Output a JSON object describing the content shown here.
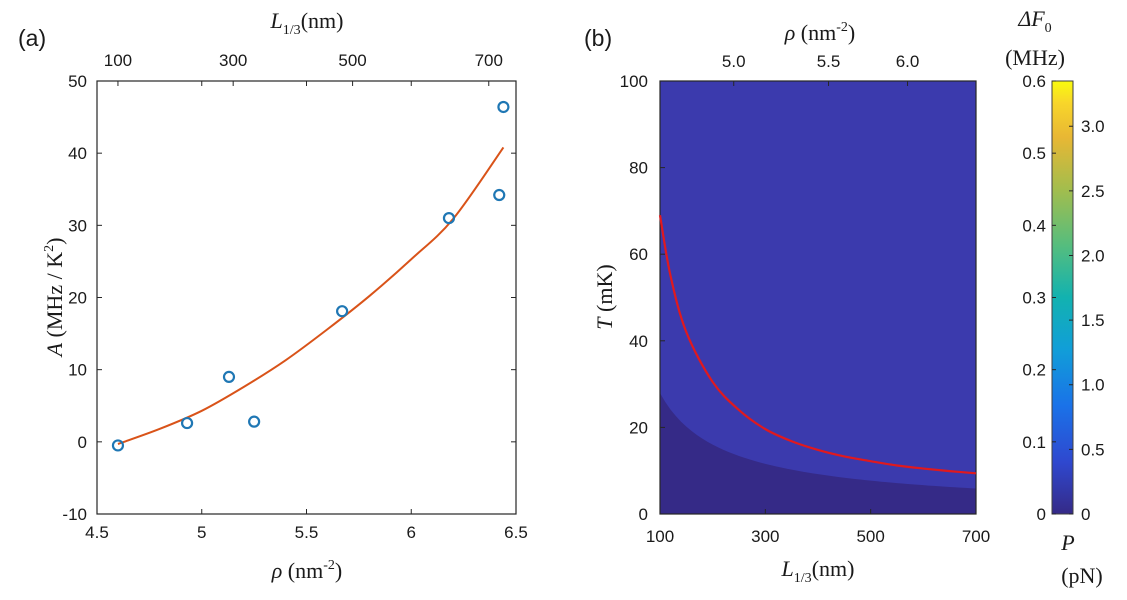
{
  "chart_data": [
    {
      "type": "scatter",
      "panel_label": "(a)",
      "xlabel": {
        "sym": "ρ",
        "unit": " (nm",
        "sup": "-2",
        "close": ")"
      },
      "ylabel": {
        "sym": "A",
        "unit": " (MHz / K",
        "sup": "2",
        "close": ")"
      },
      "top_xlabel": {
        "sym": "L",
        "sub": "1/3",
        "unit": "(nm)"
      },
      "xlim": [
        4.5,
        6.5
      ],
      "ylim": [
        -10,
        50
      ],
      "xticks": [
        4.5,
        5,
        5.5,
        6,
        6.5
      ],
      "xtick_labels": [
        "4.5",
        "5",
        "5.5",
        "6",
        "6.5"
      ],
      "yticks": [
        -10,
        0,
        10,
        20,
        30,
        40,
        50
      ],
      "ytick_labels": [
        "-10",
        "0",
        "10",
        "20",
        "30",
        "40",
        "50"
      ],
      "top_ticks": [
        {
          "label": "100",
          "rho": 4.6
        },
        {
          "label": "300",
          "rho": 5.15
        },
        {
          "label": "500",
          "rho": 5.72
        },
        {
          "label": "700",
          "rho": 6.37
        }
      ],
      "points": [
        {
          "x": 4.6,
          "y": -0.5
        },
        {
          "x": 4.93,
          "y": 2.6
        },
        {
          "x": 5.13,
          "y": 9.0
        },
        {
          "x": 5.25,
          "y": 2.8
        },
        {
          "x": 5.67,
          "y": 18.1
        },
        {
          "x": 6.18,
          "y": 31.0
        },
        {
          "x": 6.42,
          "y": 34.2
        },
        {
          "x": 6.44,
          "y": 46.4
        }
      ],
      "fit": {
        "x": [
          4.6,
          4.8,
          5.0,
          5.2,
          5.4,
          5.6,
          5.8,
          6.0,
          6.2,
          6.44
        ],
        "y": [
          -0.3,
          1.8,
          4.3,
          7.6,
          11.3,
          15.6,
          20.2,
          25.3,
          30.9,
          40.8
        ]
      },
      "colors": {
        "points": "#1f77b4",
        "fit": "#d95319"
      }
    },
    {
      "type": "heatmap",
      "panel_label": "(b)",
      "xlabel": {
        "sym": "L",
        "sub": "1/3",
        "unit": "(nm)"
      },
      "ylabel": {
        "sym": "T",
        "unit": " (mK)"
      },
      "top_xlabel": {
        "sym": "ρ",
        "unit": " (nm",
        "sup": "-2",
        "close": ")"
      },
      "xlim": [
        100,
        700
      ],
      "ylim": [
        0,
        100
      ],
      "xticks": [
        100,
        300,
        500,
        700
      ],
      "xtick_labels": [
        "100",
        "300",
        "500",
        "700"
      ],
      "yticks": [
        0,
        20,
        40,
        60,
        80,
        100
      ],
      "ytick_labels": [
        "0",
        "20",
        "40",
        "60",
        "80",
        "100"
      ],
      "top_ticks": [
        {
          "label": "5.0",
          "L": 240
        },
        {
          "label": "5.5",
          "L": 420
        },
        {
          "label": "6.0",
          "L": 570
        }
      ],
      "curve": {
        "x": [
          100,
          120,
          150,
          200,
          250,
          300,
          350,
          400,
          450,
          500,
          550,
          600,
          650,
          700
        ],
        "y": [
          69.0,
          55.0,
          42.0,
          30.5,
          24.0,
          19.6,
          16.8,
          14.8,
          13.3,
          12.2,
          11.2,
          10.5,
          9.9,
          9.4
        ]
      },
      "colorbar": {
        "top_label": {
          "sym": "ΔF",
          "sub": "0",
          "unit": "(MHz)"
        },
        "bottom_label": {
          "sym": "P",
          "unit": "(pN)"
        },
        "left_ticks": [
          "0",
          "0.1",
          "0.2",
          "0.3",
          "0.4",
          "0.5",
          "0.6"
        ],
        "left_range": [
          0,
          0.6
        ],
        "right_ticks": [
          "0",
          "0.5",
          "1.0",
          "1.5",
          "2.0",
          "2.5",
          "3.0"
        ],
        "right_range": [
          0,
          3.35
        ]
      },
      "colors": {
        "curve": "#e0191e"
      }
    }
  ]
}
